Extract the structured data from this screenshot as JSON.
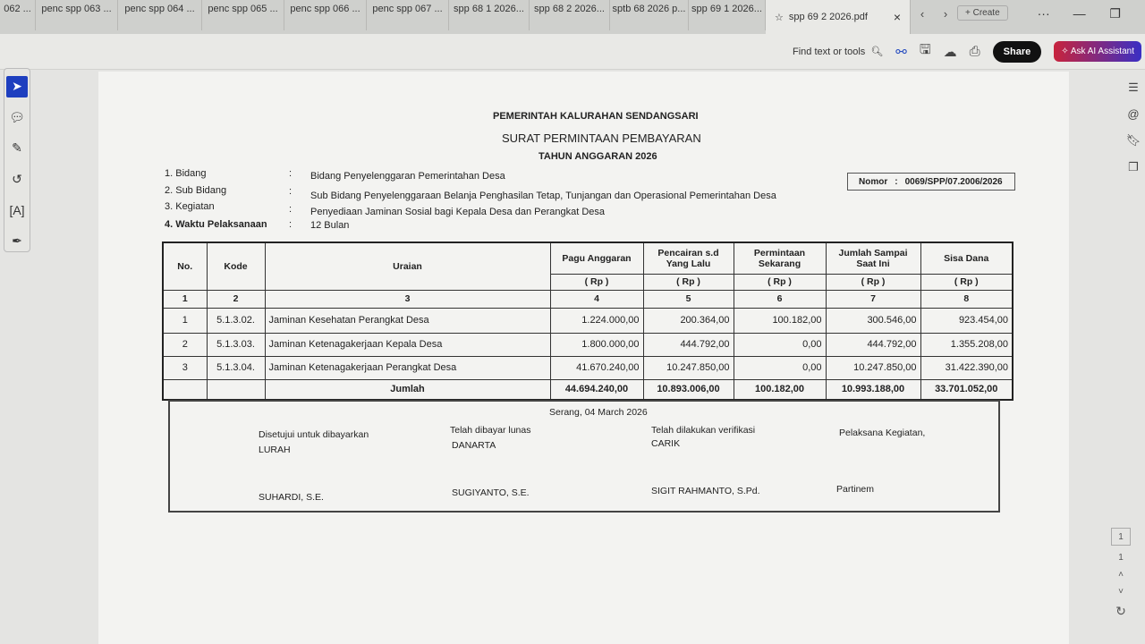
{
  "tabs": [
    "062 ...",
    "penc spp 063 ...",
    "penc spp 064 ...",
    "penc spp 065 ...",
    "penc spp 066 ...",
    "penc spp 067 ...",
    "spp 68 1 2026...",
    "spp 68 2 2026...",
    "sptb 68 2026 p...",
    "spp 69 1 2026..."
  ],
  "active_tab": "spp 69 2 2026.pdf",
  "create_label": "Create",
  "toolbar": {
    "find": "Find text or tools",
    "share": "Share",
    "ai": "Ask AI Assistant"
  },
  "doc": {
    "org": "PEMERINTAH KALURAHAN SENDANGSARI",
    "title": "SURAT PERMINTAAN PEMBAYARAN",
    "year": "TAHUN ANGGARAN 2026",
    "fields": [
      {
        "label": "1. Bidang",
        "value": "Bidang Penyelenggaran Pemerintahan Desa"
      },
      {
        "label": "2. Sub Bidang",
        "value": "Sub Bidang Penyelenggaraan Belanja Penghasilan Tetap, Tunjangan dan Operasional Pemerintahan Desa"
      },
      {
        "label": "3. Kegiatan",
        "value": "Penyediaan Jaminan Sosial bagi Kepala Desa dan Perangkat Desa"
      },
      {
        "label": "4. Waktu Pelaksanaan",
        "value": "12 Bulan"
      }
    ],
    "colon": ":",
    "nomor_label": "Nomor",
    "nomor": "0069/SPP/07.2006/2026",
    "table": {
      "headers": [
        "No.",
        "Kode",
        "Uraian",
        "Pagu Anggaran",
        "Pencairan s.d Yang Lalu",
        "Permintaan Sekarang",
        "Jumlah Sampai Saat Ini",
        "Sisa Dana"
      ],
      "unit": "( Rp )",
      "col_numbers": [
        "1",
        "2",
        "3",
        "4",
        "5",
        "6",
        "7",
        "8"
      ],
      "rows": [
        [
          "1",
          "5.1.3.02.",
          "Jaminan Kesehatan Perangkat Desa",
          "1.224.000,00",
          "200.364,00",
          "100.182,00",
          "300.546,00",
          "923.454,00"
        ],
        [
          "2",
          "5.1.3.03.",
          "Jaminan Ketenagakerjaan Kepala Desa",
          "1.800.000,00",
          "444.792,00",
          "0,00",
          "444.792,00",
          "1.355.208,00"
        ],
        [
          "3",
          "5.1.3.04.",
          "Jaminan Ketenagakerjaan Perangkat Desa",
          "41.670.240,00",
          "10.247.850,00",
          "0,00",
          "10.247.850,00",
          "31.422.390,00"
        ]
      ],
      "total_label": "Jumlah",
      "totals": [
        "44.694.240,00",
        "10.893.006,00",
        "100.182,00",
        "10.993.188,00",
        "33.701.052,00"
      ]
    },
    "signatures": {
      "place_date": "Serang,  04 March 2026",
      "s1_title": "Disetujui untuk dibayarkan",
      "s1_role": "LURAH",
      "s1_name": "SUHARDI, S.E.",
      "s2_title": "Telah dibayar lunas",
      "s2_role": "DANARTA",
      "s2_name": "SUGIYANTO, S.E.",
      "s3_title": "Telah dilakukan verifikasi",
      "s3_role": "CARIK",
      "s3_name": "SIGIT RAHMANTO, S.Pd.",
      "s4_title": "Pelaksana Kegiatan,",
      "s4_name": "Partinem"
    }
  },
  "pager": {
    "current": "1",
    "total": "1"
  }
}
